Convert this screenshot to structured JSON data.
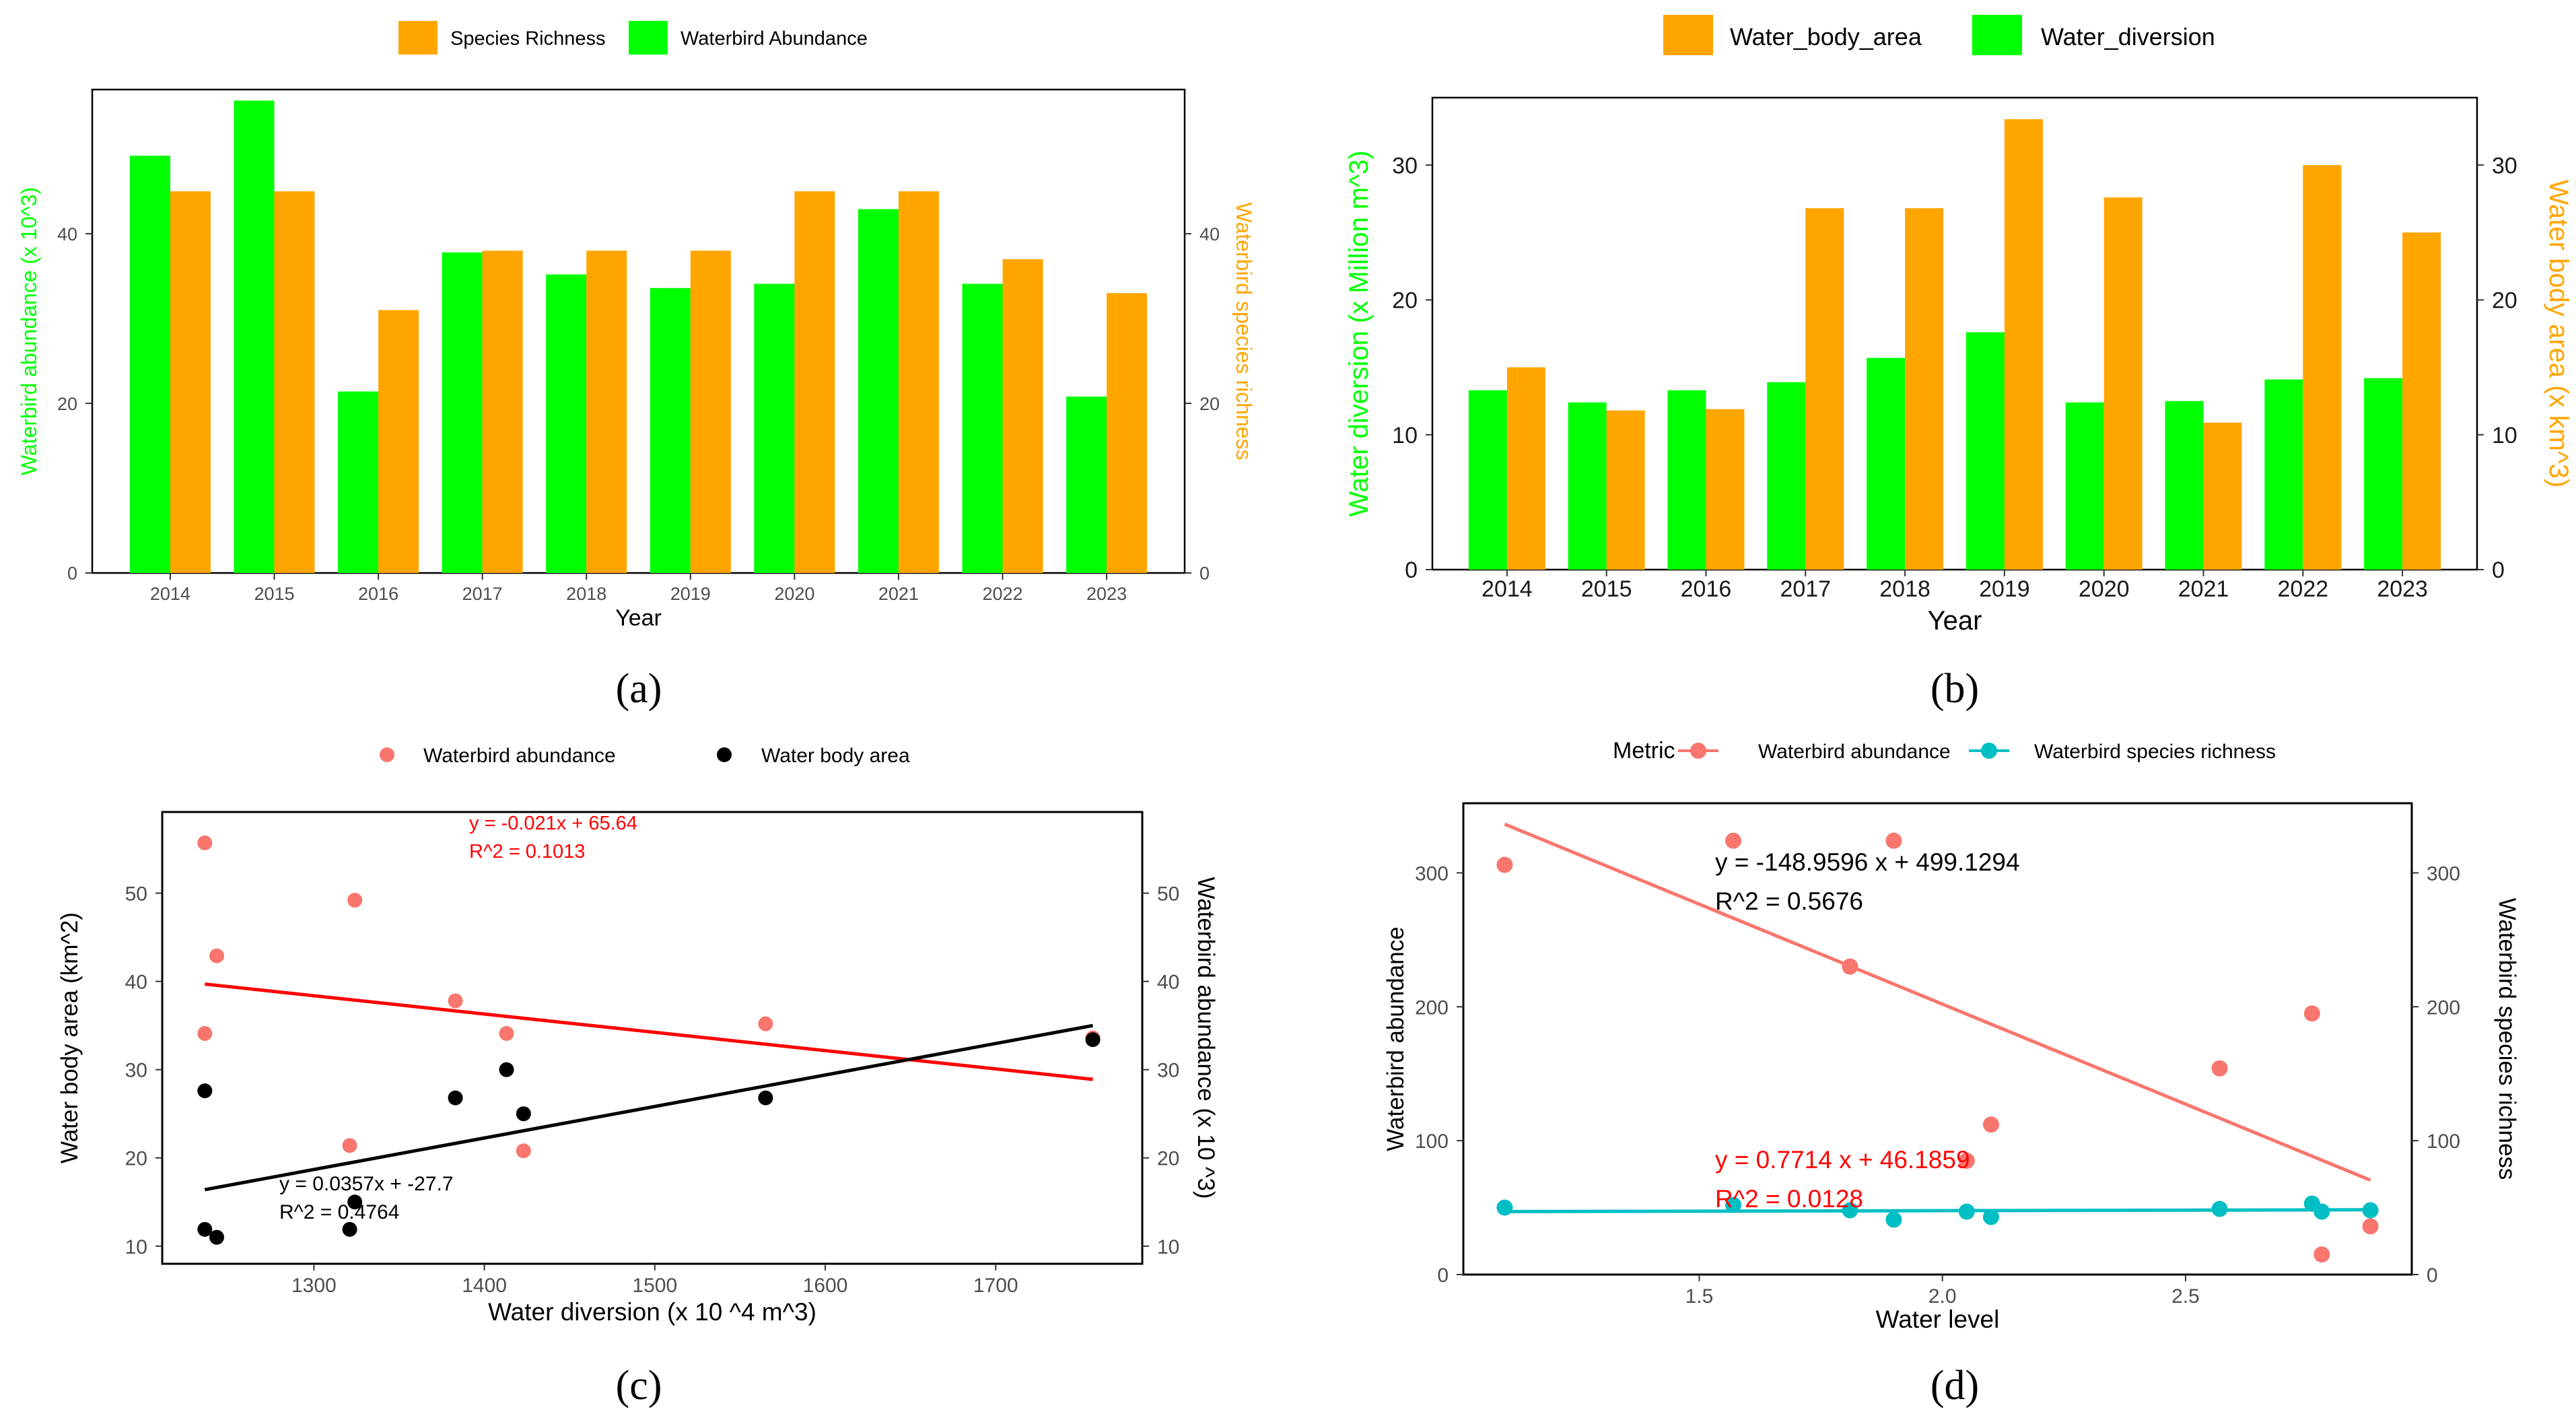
{
  "colors": {
    "green": "#00ff00",
    "orange": "#ffa500",
    "salmon": "#f8766d",
    "red": "#ff0000",
    "black": "#000000",
    "teal": "#00bfc4",
    "gray_text": "#4d4d4d"
  },
  "chart_data": [
    {
      "id": "a",
      "type": "bar",
      "panel_label": "(a)",
      "legend": [
        "Species Richness",
        "Waterbird Abundance"
      ],
      "categories": [
        "2014",
        "2015",
        "2016",
        "2017",
        "2018",
        "2019",
        "2020",
        "2021",
        "2022",
        "2023"
      ],
      "series": [
        {
          "name": "Waterbird Abundance",
          "axis": "left",
          "color": "green",
          "values": [
            49.2,
            55.7,
            21.4,
            37.8,
            35.2,
            33.6,
            34.1,
            42.9,
            34.1,
            20.8
          ]
        },
        {
          "name": "Species Richness",
          "axis": "right",
          "color": "orange",
          "values": [
            45,
            45,
            31,
            38,
            38,
            38,
            45,
            45,
            37,
            33
          ]
        }
      ],
      "xlabel": "Year",
      "ylabel": "Waterbird abundance (x 10^3)",
      "ylabel_right": "Waterbird species richness",
      "ylim": [
        0,
        57
      ],
      "yticks": [
        "0",
        "20",
        "40"
      ],
      "ylim_right": [
        0,
        57
      ],
      "yticks_right": [
        "0",
        "20",
        "40"
      ]
    },
    {
      "id": "b",
      "type": "bar",
      "panel_label": "(b)",
      "legend": [
        "Water_body_area",
        "Water_diversion"
      ],
      "categories": [
        "2014",
        "2015",
        "2016",
        "2017",
        "2018",
        "2019",
        "2020",
        "2021",
        "2022",
        "2023"
      ],
      "series": [
        {
          "name": "Water_diversion",
          "axis": "left",
          "color": "green",
          "values": [
            13.3,
            12.4,
            13.3,
            13.9,
            15.7,
            17.6,
            12.4,
            12.5,
            14.1,
            14.2
          ]
        },
        {
          "name": "Water_body_area",
          "axis": "right",
          "color": "orange",
          "values": [
            15.0,
            11.8,
            11.9,
            26.8,
            26.8,
            33.4,
            27.6,
            10.9,
            30.0,
            25.0
          ]
        }
      ],
      "xlabel": "Year",
      "ylabel": "Water diversion (x Million m^3)",
      "ylabel_right": "Water body area (x km^3)",
      "ylim": [
        0,
        35
      ],
      "yticks": [
        "0",
        "10",
        "20",
        "30"
      ],
      "ylim_right": [
        0,
        35
      ],
      "yticks_right": [
        "0",
        "10",
        "20",
        "30"
      ]
    },
    {
      "id": "c",
      "type": "scatter",
      "panel_label": "(c)",
      "legend": [
        "Waterbird abundance",
        "Water body area"
      ],
      "series": [
        {
          "name": "Waterbird abundance",
          "color": "salmon",
          "x": [
            1236,
            1236,
            1243,
            1321,
            1324,
            1383,
            1413,
            1423,
            1565,
            1757
          ],
          "y": [
            55.7,
            34.1,
            42.9,
            21.4,
            49.2,
            37.8,
            34.1,
            20.8,
            35.2,
            33.6
          ]
        },
        {
          "name": "Water body area",
          "color": "black",
          "x": [
            1236,
            1236,
            1243,
            1321,
            1324,
            1383,
            1413,
            1423,
            1565,
            1757
          ],
          "y": [
            27.6,
            11.9,
            11.0,
            11.9,
            15.0,
            26.8,
            30.0,
            25.0,
            26.8,
            33.4
          ]
        }
      ],
      "fits": [
        {
          "color": "red",
          "x": [
            1236,
            1757
          ],
          "y": [
            39.7,
            28.9
          ]
        },
        {
          "color": "black",
          "x": [
            1236,
            1757
          ],
          "y": [
            16.4,
            35.0
          ]
        }
      ],
      "annotations": [
        {
          "color": "red",
          "lines": [
            "y = -0.021x + 65.64",
            "R^2 = 0.1013"
          ]
        },
        {
          "color": "black",
          "lines": [
            "y = 0.0357x + -27.7",
            "R^2 = 0.4764"
          ]
        }
      ],
      "xlabel": "Water diversion (x 10 ^4 m^3)",
      "ylabel": "Water body area (km^2)",
      "ylabel_right": "Waterbird abundance (x 10 ^3)",
      "xlim": [
        1211,
        1786
      ],
      "xticks": [
        1300,
        1400,
        1500,
        1600,
        1700
      ],
      "ylim": [
        8,
        59.2
      ],
      "yticks": [
        10,
        20,
        30,
        40,
        50
      ],
      "yticks_right": [
        10,
        20,
        30,
        40,
        50
      ]
    },
    {
      "id": "d",
      "type": "scatter",
      "panel_label": "(d)",
      "legend_title": "Metric",
      "legend": [
        "Waterbird abundance",
        "Waterbird species richness"
      ],
      "series": [
        {
          "name": "Waterbird abundance",
          "color": "salmon",
          "x": [
            1.1,
            1.57,
            1.81,
            1.9,
            2.05,
            2.1,
            2.57,
            2.76,
            2.78,
            2.88
          ],
          "y": [
            306,
            324,
            230,
            324,
            85,
            112,
            154,
            195,
            15,
            36
          ]
        },
        {
          "name": "Waterbird species richness",
          "color": "teal",
          "x": [
            1.1,
            1.57,
            1.81,
            1.9,
            2.05,
            2.1,
            2.57,
            2.76,
            2.78,
            2.88
          ],
          "y": [
            50,
            52,
            48,
            41,
            47,
            43,
            49,
            53,
            47,
            48
          ]
        }
      ],
      "fits": [
        {
          "color": "salmon",
          "x": [
            1.1,
            2.88
          ],
          "y": [
            336.4,
            70.5
          ]
        },
        {
          "color": "teal",
          "x": [
            1.1,
            2.88
          ],
          "y": [
            47.0,
            48.4
          ]
        }
      ],
      "annotations": [
        {
          "color": "black",
          "lines": [
            "y = -148.9596 x + 499.1294",
            "R^2 = 0.5676"
          ]
        },
        {
          "color": "red",
          "lines": [
            "y = 0.7714 x + 46.1859",
            "R^2 = 0.0128"
          ]
        }
      ],
      "xlabel": "Water level",
      "ylabel": "Waterbird abundance",
      "ylabel_right": "Waterbird species richness",
      "xlim": [
        1.015,
        2.965
      ],
      "xticks": [
        "1.5",
        "2.0",
        "2.5"
      ],
      "ylim": [
        0,
        352
      ],
      "yticks": [
        0,
        100,
        200,
        300
      ],
      "yticks_right": [
        0,
        100,
        200,
        300
      ]
    }
  ]
}
